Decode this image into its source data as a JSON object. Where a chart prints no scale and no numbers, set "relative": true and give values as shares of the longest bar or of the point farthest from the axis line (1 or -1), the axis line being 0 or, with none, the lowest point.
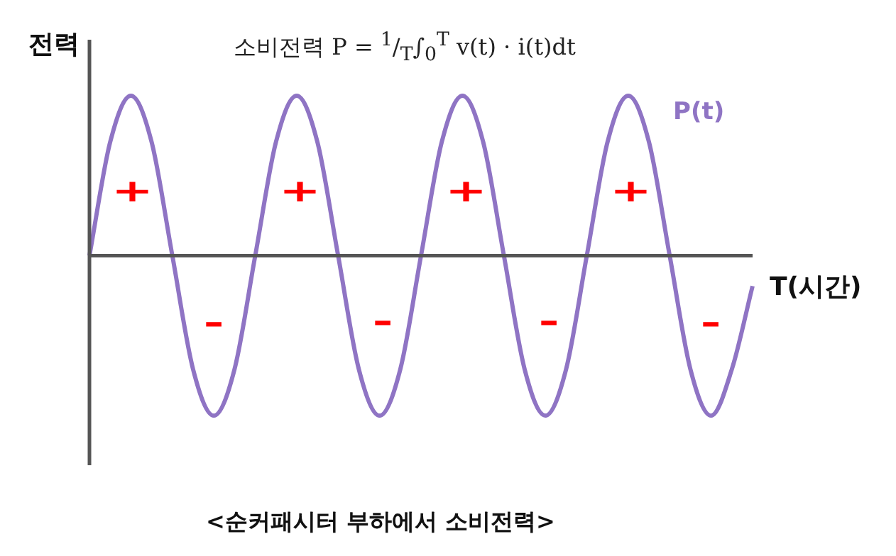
{
  "chart_data": {
    "type": "line",
    "relative": true,
    "title": "소비전력 P = $^{1}$/$_{T}$∫$_{0}$$^{T}$ v(t) · i(t)dt",
    "xlabel": "T(시간)",
    "ylabel": "전력",
    "categories": [
      null,
      null,
      null,
      null,
      null,
      null,
      null,
      null,
      null,
      null,
      null,
      null,
      null,
      null,
      null,
      null,
      null,
      null,
      null,
      null,
      null,
      null,
      null,
      null,
      null,
      null,
      null,
      null,
      null,
      null,
      null,
      null,
      null
    ],
    "series": [
      {
        "name": "P(t)",
        "color": "#8f74c4",
        "values": [
          0,
          0.71,
          1,
          0.71,
          0,
          -0.71,
          -1,
          -0.71,
          0,
          0.71,
          1,
          0.71,
          0,
          -0.71,
          -1,
          -0.71,
          0,
          0.71,
          1,
          0.71,
          0,
          -0.71,
          -1,
          -0.71,
          0,
          0.71,
          1,
          0.71,
          0,
          -0.71,
          -1,
          -0.71,
          -0.19
        ]
      }
    ],
    "annotations": [
      "+",
      "+",
      "+",
      "+",
      "-",
      "-",
      "-",
      "-",
      "<순커패시터 부하에서 소비전력>"
    ],
    "marker": "none",
    "legend": false
  }
}
